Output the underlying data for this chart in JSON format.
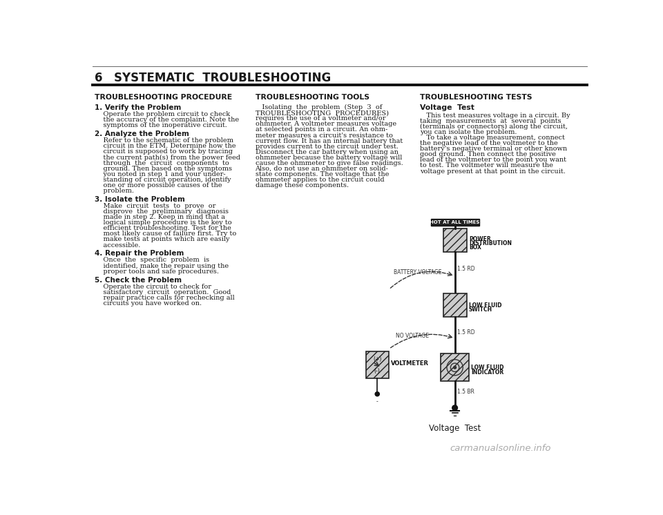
{
  "bg_color": "#ffffff",
  "text_color": "#1a1a1a",
  "page_number": "6",
  "chapter_title": "SYSTEMATIC  TROUBLESHOOTING",
  "col1_header": "TROUBLESHOOTING PROCEDURE",
  "col2_header": "TROUBLESHOOTING TOOLS",
  "col3_header": "TROUBLESHOOTING TESTS",
  "col1_sections": [
    {
      "num": "1.",
      "heading": " Verify the Problem",
      "body": "    Operate the problem circuit to check\n    the accuracy of the complaint. Note the\n    symptoms of the inoperative circuit."
    },
    {
      "num": "2.",
      "heading": " Analyze the Problem",
      "body": "    Refer to the schematic of the problem\n    circuit in the ETM. Determine how the\n    circuit is supposed to work by tracing\n    the current path(s) from the power feed\n    through  the  circuit  components  to\n    ground. Then based on the symptoms\n    you noted in step 1 and your under-\n    standing of circuit operation, identify\n    one or more possible causes of the\n    problem."
    },
    {
      "num": "3.",
      "heading": " Isolate the Problem",
      "body": "    Make  circuit  tests  to  prove  or\n    disprove  the  preliminary  diagnosis\n    made in step 2. Keep in mind that a\n    logical simple procedure is the key to\n    efficient troubleshooting. Test for the\n    most likely cause of failure first. Try to\n    make tests at points which are easily\n    accessible."
    },
    {
      "num": "4.",
      "heading": " Repair the Problem",
      "body": "    Once  the  specific  problem  is\n    identified, make the repair using the\n    proper tools and safe procedures."
    },
    {
      "num": "5.",
      "heading": " Check the Problem",
      "body": "    Operate the circuit to check for\n    satisfactory  circuit  operation.  Good\n    repair practice calls for rechecking all\n    circuits you have worked on."
    }
  ],
  "col2_body_lines": [
    {
      "text": "   Isolating  the  problem  (Step  3  of",
      "bold_ranges": []
    },
    {
      "text": "TROUBLESHOOTING  PROCEDURES)",
      "bold_ranges": []
    },
    {
      "text": "requires the use of a voltmeter and/or",
      "bold_ranges": [
        [
          22,
          31
        ]
      ]
    },
    {
      "text": "ohmmeter. A voltmeter measures voltage",
      "bold_ranges": [
        [
          0,
          8
        ]
      ]
    },
    {
      "text": "at selected points in a circuit. An ohm-",
      "bold_ranges": []
    },
    {
      "text": "meter measures a circuit's resistance to",
      "bold_ranges": []
    },
    {
      "text": "current flow. It has an internal battery that",
      "bold_ranges": []
    },
    {
      "text": "provides current to the circuit under test.",
      "bold_ranges": []
    },
    {
      "text": "Disconnect the car battery when using an",
      "bold_ranges": []
    },
    {
      "text": "ohmmeter because the battery voltage will",
      "bold_ranges": []
    },
    {
      "text": "cause the ohmmeter to give false readings.",
      "bold_ranges": []
    },
    {
      "text": "Also, do not use an ohmmeter on solid-",
      "bold_ranges": []
    },
    {
      "text": "state components. The voltage that the",
      "bold_ranges": []
    },
    {
      "text": "ohmmeter applies to the circuit could",
      "bold_ranges": []
    },
    {
      "text": "damage these components.",
      "bold_ranges": []
    }
  ],
  "col3_subheader": "Voltage  Test",
  "col3_body_lines": [
    "   This test measures voltage in a circuit. By",
    "taking  measurements  at  several  points",
    "(terminals or connectors) along the circuit,",
    "you can isolate the problem.",
    "   To take a voltage measurement, connect",
    "the negative lead of the voltmeter to the",
    "battery's negative terminal or other known",
    "good ground. Then connect the positive",
    "lead of the voltmeter to the point you want",
    "to test. The voltmeter will measure the",
    "voltage present at that point in the circuit."
  ],
  "col3_diagram_caption": "Voltage  Test",
  "watermark": "carmanualsonline.info",
  "watermark_color": "#aaaaaa"
}
